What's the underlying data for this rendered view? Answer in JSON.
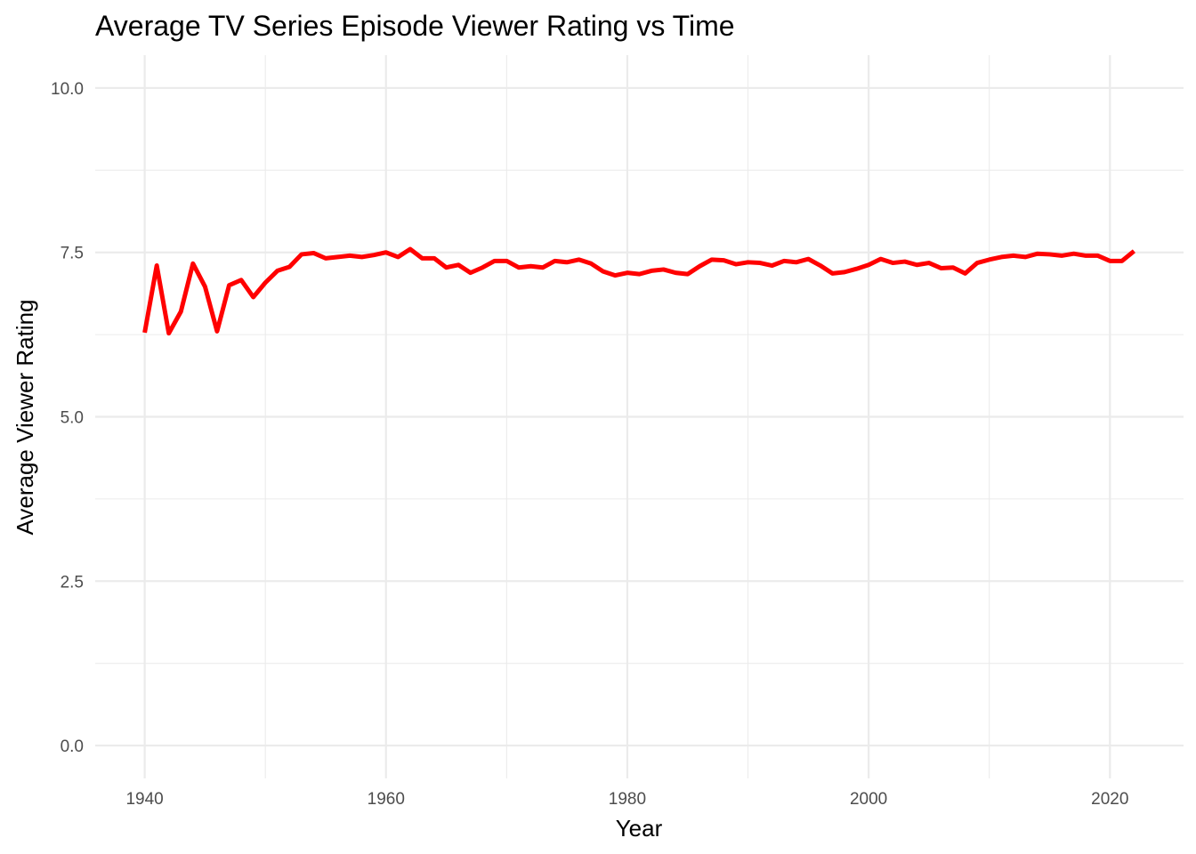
{
  "chart_data": {
    "type": "line",
    "title": "Average TV Series Episode Viewer Rating vs Time",
    "xlabel": "Year",
    "ylabel": "Average Viewer Rating",
    "xlim": [
      1935.9,
      2026.1
    ],
    "ylim": [
      -0.5,
      10.5
    ],
    "x_ticks": [
      1940,
      1960,
      1980,
      2000,
      2020
    ],
    "x_tick_labels": [
      "1940",
      "1960",
      "1980",
      "2000",
      "2020"
    ],
    "y_ticks": [
      0,
      2.5,
      5,
      7.5,
      10
    ],
    "y_tick_labels": [
      "0.0",
      "2.5",
      "5.0",
      "7.5",
      "10.0"
    ],
    "grid": true,
    "legend": "none",
    "series": [
      {
        "color": "#ff0000",
        "x": [
          1940,
          1941,
          1942,
          1943,
          1944,
          1945,
          1946,
          1947,
          1948,
          1949,
          1950,
          1951,
          1952,
          1953,
          1954,
          1955,
          1956,
          1957,
          1958,
          1959,
          1960,
          1961,
          1962,
          1963,
          1964,
          1965,
          1966,
          1967,
          1968,
          1969,
          1970,
          1971,
          1972,
          1973,
          1974,
          1975,
          1976,
          1977,
          1978,
          1979,
          1980,
          1981,
          1982,
          1983,
          1984,
          1985,
          1986,
          1987,
          1988,
          1989,
          1990,
          1991,
          1992,
          1993,
          1994,
          1995,
          1996,
          1997,
          1998,
          1999,
          2000,
          2001,
          2002,
          2003,
          2004,
          2005,
          2006,
          2007,
          2008,
          2009,
          2010,
          2011,
          2012,
          2013,
          2014,
          2015,
          2016,
          2017,
          2018,
          2019,
          2020,
          2021,
          2022
        ],
        "values": [
          6.28,
          7.3,
          6.27,
          6.6,
          7.33,
          6.98,
          6.3,
          7.0,
          7.08,
          6.82,
          7.04,
          7.22,
          7.28,
          7.47,
          7.49,
          7.41,
          7.43,
          7.45,
          7.43,
          7.46,
          7.5,
          7.43,
          7.55,
          7.41,
          7.41,
          7.27,
          7.31,
          7.19,
          7.27,
          7.37,
          7.37,
          7.27,
          7.29,
          7.27,
          7.37,
          7.35,
          7.39,
          7.33,
          7.21,
          7.15,
          7.19,
          7.17,
          7.22,
          7.24,
          7.19,
          7.17,
          7.29,
          7.39,
          7.38,
          7.32,
          7.35,
          7.34,
          7.3,
          7.37,
          7.35,
          7.4,
          7.3,
          7.18,
          7.2,
          7.25,
          7.31,
          7.4,
          7.34,
          7.36,
          7.31,
          7.34,
          7.26,
          7.27,
          7.18,
          7.34,
          7.39,
          7.43,
          7.45,
          7.43,
          7.48,
          7.47,
          7.45,
          7.48,
          7.45,
          7.45,
          7.37,
          7.37,
          7.52
        ]
      }
    ]
  }
}
